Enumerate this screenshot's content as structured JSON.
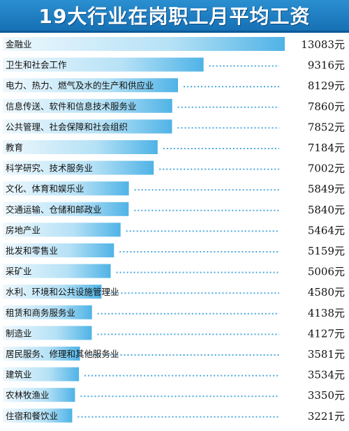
{
  "chart_data": {
    "type": "bar",
    "orientation": "horizontal",
    "title": "19大行业在岗职工月平均工资",
    "unit": "元",
    "categories": [
      "金融业",
      "卫生和社会工作",
      "电力、热力、燃气及水的生产和供应业",
      "信息传送、软件和信息技术服务业",
      "公共管理、社会保障和社会组织",
      "教育",
      "科学研究、技术服务业",
      "文化、体育和娱乐业",
      "交通运输、仓储和邮政业",
      "房地产业",
      "批发和零售业",
      "采矿业",
      "水利、环境和公共设施管理业",
      "租赁和商务服务业",
      "制造业",
      "居民服务、修理和其他服务业",
      "建筑业",
      "农林牧渔业",
      "住宿和餐饮业"
    ],
    "values": [
      13083,
      9316,
      8129,
      7860,
      7852,
      7184,
      7002,
      5849,
      5840,
      5464,
      5159,
      5006,
      4580,
      4138,
      4127,
      3581,
      3534,
      3350,
      3221
    ],
    "value_labels": [
      "13083元",
      "9316元",
      "8129元",
      "7860元",
      "7852元",
      "7184元",
      "7002元",
      "5849元",
      "5840元",
      "5464元",
      "5159元",
      "5006元",
      "4580元",
      "4138元",
      "4127元",
      "3581元",
      "3534元",
      "3350元",
      "3221元"
    ],
    "colors": {
      "bar_light": "#e6f5fc",
      "bar_dark": "#4fb3e6",
      "dots": "#4aa8dd",
      "title_bg": "#1d7cc2"
    }
  }
}
